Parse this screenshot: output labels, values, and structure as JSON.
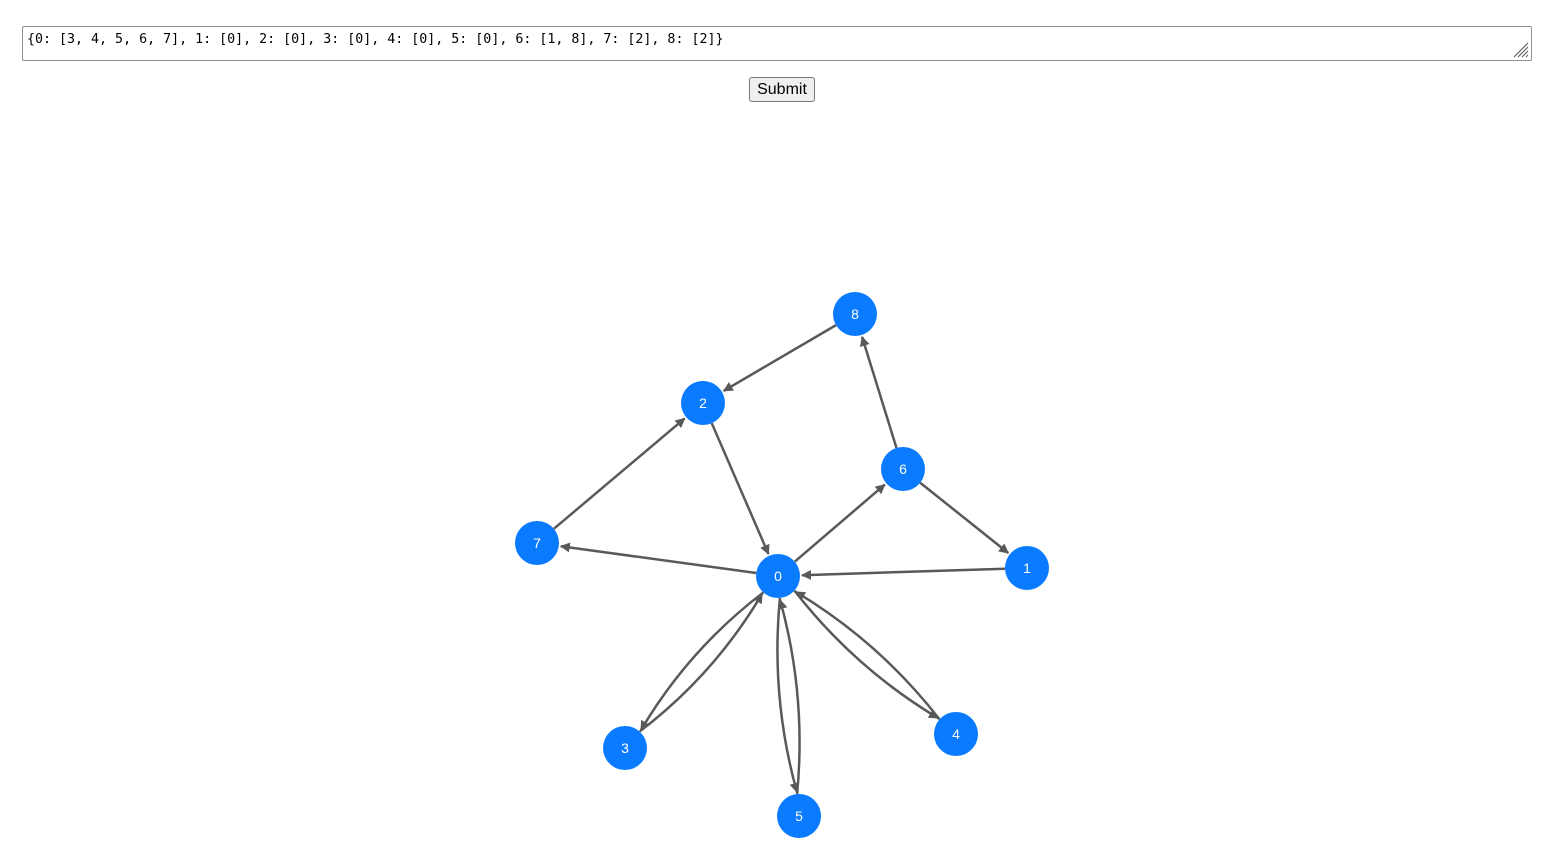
{
  "input": {
    "value": "{0: [3, 4, 5, 6, 7], 1: [0], 2: [0], 3: [0], 4: [0], 5: [0], 6: [1, 8], 7: [2], 8: [2]}"
  },
  "submit_label": "Submit",
  "graph": {
    "node_color": "#0a7bff",
    "edge_color": "#595959",
    "label_color": "#ffffff",
    "nodes": [
      {
        "id": "0",
        "label": "0"
      },
      {
        "id": "1",
        "label": "1"
      },
      {
        "id": "2",
        "label": "2"
      },
      {
        "id": "3",
        "label": "3"
      },
      {
        "id": "4",
        "label": "4"
      },
      {
        "id": "5",
        "label": "5"
      },
      {
        "id": "6",
        "label": "6"
      },
      {
        "id": "7",
        "label": "7"
      },
      {
        "id": "8",
        "label": "8"
      }
    ],
    "edges": [
      {
        "from": "0",
        "to": "3"
      },
      {
        "from": "0",
        "to": "4"
      },
      {
        "from": "0",
        "to": "5"
      },
      {
        "from": "0",
        "to": "6"
      },
      {
        "from": "0",
        "to": "7"
      },
      {
        "from": "1",
        "to": "0"
      },
      {
        "from": "2",
        "to": "0"
      },
      {
        "from": "3",
        "to": "0"
      },
      {
        "from": "4",
        "to": "0"
      },
      {
        "from": "5",
        "to": "0"
      },
      {
        "from": "6",
        "to": "1"
      },
      {
        "from": "6",
        "to": "8"
      },
      {
        "from": "7",
        "to": "2"
      },
      {
        "from": "8",
        "to": "2"
      }
    ]
  }
}
